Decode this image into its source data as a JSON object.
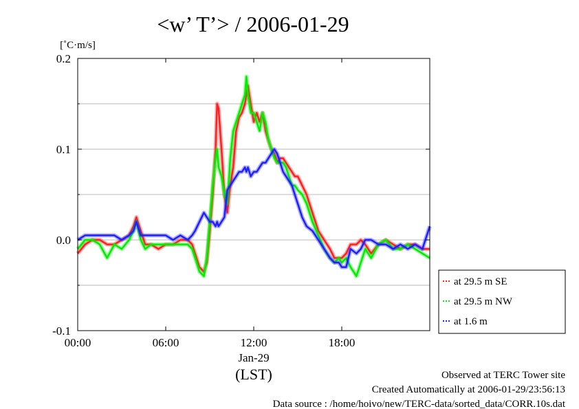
{
  "chart_data": {
    "type": "line",
    "title": "<w’ T’> / 2006-01-29",
    "ylabel": "[˚C·m/s]",
    "xlabel": "(LST)",
    "x_date_label": "Jan-29",
    "x_ticks": [
      "00:00",
      "06:00",
      "12:00",
      "18:00"
    ],
    "y_ticks": [
      "0.2",
      "0.1",
      "0.0",
      "-0.1"
    ],
    "xlim": [
      0,
      24
    ],
    "ylim": [
      -0.1,
      0.2
    ],
    "grid": true,
    "legend_position": "right",
    "series": [
      {
        "name": "at 29.5 m SE",
        "color": "#ff2020",
        "x": [
          0,
          0.5,
          1,
          1.5,
          2,
          2.5,
          3,
          3.5,
          3.8,
          4,
          4.3,
          4.6,
          5,
          5.5,
          6,
          6.5,
          7,
          7.5,
          7.8,
          8,
          8.3,
          8.6,
          8.8,
          9,
          9.2,
          9.4,
          9.5,
          9.6,
          9.8,
          10,
          10.2,
          10.4,
          10.6,
          10.8,
          11,
          11.2,
          11.4,
          11.5,
          11.6,
          11.8,
          12,
          12.2,
          12.4,
          12.6,
          12.8,
          13,
          13.2,
          13.4,
          13.6,
          13.8,
          14,
          14.2,
          14.4,
          14.6,
          14.8,
          15,
          15.3,
          15.6,
          16,
          16.4,
          16.8,
          17.2,
          17.5,
          17.8,
          18,
          18.3,
          18.6,
          19,
          19.3,
          19.6,
          20,
          20.5,
          21,
          21.5,
          22,
          22.5,
          23,
          23.5,
          24
        ],
        "y": [
          -0.015,
          -0.005,
          0,
          0,
          -0.005,
          -0.005,
          0,
          0.005,
          0.015,
          0.025,
          0.01,
          -0.005,
          -0.005,
          -0.01,
          -0.005,
          -0.005,
          0,
          0,
          -0.005,
          -0.015,
          -0.03,
          -0.035,
          -0.025,
          0.01,
          0.05,
          0.1,
          0.15,
          0.145,
          0.1,
          0.05,
          0.03,
          0.06,
          0.08,
          0.12,
          0.135,
          0.14,
          0.15,
          0.16,
          0.17,
          0.15,
          0.13,
          0.14,
          0.13,
          0.14,
          0.12,
          0.11,
          0.1,
          0.095,
          0.085,
          0.09,
          0.09,
          0.085,
          0.08,
          0.075,
          0.07,
          0.07,
          0.06,
          0.05,
          0.03,
          0.01,
          0,
          -0.01,
          -0.02,
          -0.02,
          -0.02,
          -0.015,
          -0.005,
          -0.005,
          0,
          -0.005,
          -0.015,
          -0.005,
          0,
          -0.005,
          -0.01,
          -0.005,
          -0.005,
          -0.01,
          -0.01
        ]
      },
      {
        "name": "at 29.5 m NW",
        "color": "#00ee00",
        "x": [
          0,
          0.5,
          1,
          1.5,
          2,
          2.5,
          3,
          3.5,
          3.8,
          4,
          4.3,
          4.6,
          5,
          5.5,
          6,
          6.5,
          7,
          7.5,
          7.8,
          8,
          8.3,
          8.6,
          8.8,
          9,
          9.2,
          9.4,
          9.5,
          9.6,
          9.8,
          10,
          10.2,
          10.4,
          10.6,
          10.8,
          11,
          11.2,
          11.4,
          11.5,
          11.6,
          11.8,
          12,
          12.2,
          12.4,
          12.6,
          12.8,
          13,
          13.2,
          13.4,
          13.6,
          13.8,
          14,
          14.2,
          14.4,
          14.6,
          14.8,
          15,
          15.3,
          15.6,
          16,
          16.4,
          16.8,
          17.2,
          17.5,
          17.8,
          18,
          18.3,
          18.6,
          19,
          19.3,
          19.6,
          20,
          20.5,
          21,
          21.5,
          22,
          22.5,
          23,
          23.5,
          24
        ],
        "y": [
          -0.01,
          0,
          0,
          -0.005,
          -0.02,
          -0.005,
          -0.01,
          0,
          0.01,
          0.02,
          0,
          -0.01,
          -0.005,
          -0.005,
          -0.005,
          -0.005,
          -0.005,
          -0.005,
          -0.01,
          -0.02,
          -0.035,
          -0.04,
          -0.02,
          0.02,
          0.06,
          0.09,
          0.1,
          0.08,
          0.07,
          0.05,
          0.04,
          0.09,
          0.12,
          0.13,
          0.14,
          0.15,
          0.16,
          0.18,
          0.16,
          0.14,
          0.14,
          0.13,
          0.12,
          0.14,
          0.13,
          0.11,
          0.1,
          0.09,
          0.085,
          0.085,
          0.085,
          0.08,
          0.07,
          0.06,
          0.06,
          0.055,
          0.05,
          0.04,
          0.02,
          0.005,
          -0.01,
          -0.02,
          -0.025,
          -0.02,
          -0.025,
          -0.02,
          -0.03,
          -0.04,
          -0.025,
          -0.01,
          -0.02,
          -0.005,
          0,
          -0.01,
          -0.01,
          -0.005,
          -0.01,
          -0.015,
          -0.02
        ]
      },
      {
        "name": "at 1.6 m",
        "color": "#2020ff",
        "x": [
          0,
          0.5,
          1,
          1.5,
          2,
          2.5,
          3,
          3.5,
          3.8,
          4,
          4.3,
          4.6,
          5,
          5.5,
          6,
          6.5,
          7,
          7.5,
          7.8,
          8,
          8.3,
          8.6,
          8.8,
          9,
          9.2,
          9.4,
          9.5,
          9.6,
          9.8,
          10,
          10.2,
          10.4,
          10.6,
          10.8,
          11,
          11.2,
          11.4,
          11.5,
          11.6,
          11.8,
          12,
          12.2,
          12.4,
          12.6,
          12.8,
          13,
          13.2,
          13.4,
          13.6,
          13.8,
          14,
          14.2,
          14.4,
          14.6,
          14.8,
          15,
          15.3,
          15.6,
          16,
          16.4,
          16.8,
          17.2,
          17.5,
          17.8,
          18,
          18.3,
          18.6,
          19,
          19.3,
          19.6,
          20,
          20.5,
          21,
          21.5,
          22,
          22.5,
          23,
          23.5,
          24
        ],
        "y": [
          0,
          0.005,
          0.005,
          0.005,
          0.005,
          0.005,
          0,
          0.005,
          0.01,
          0.02,
          0.005,
          0.005,
          0.005,
          0.005,
          0.005,
          0,
          0.005,
          0,
          0.005,
          0.01,
          0.02,
          0.03,
          0.025,
          0.02,
          0.02,
          0.015,
          0.02,
          0.015,
          0.02,
          0.025,
          0.055,
          0.06,
          0.065,
          0.07,
          0.075,
          0.075,
          0.08,
          0.075,
          0.08,
          0.07,
          0.075,
          0.075,
          0.08,
          0.085,
          0.085,
          0.09,
          0.095,
          0.1,
          0.095,
          0.085,
          0.075,
          0.07,
          0.065,
          0.06,
          0.05,
          0.04,
          0.025,
          0.015,
          0.01,
          0,
          -0.01,
          -0.02,
          -0.025,
          -0.025,
          -0.03,
          -0.03,
          -0.01,
          -0.015,
          -0.01,
          0,
          0,
          -0.005,
          -0.005,
          -0.01,
          -0.005,
          -0.01,
          -0.005,
          -0.01,
          0.015
        ]
      }
    ]
  },
  "footer": {
    "line1": "Observed at TERC Tower site",
    "line2": "Created Automatically at 2006-01-29/23:56:13",
    "line3": "Data source : /home/hoivo/new/TERC-data/sorted_data/CORR.10s.dat"
  }
}
